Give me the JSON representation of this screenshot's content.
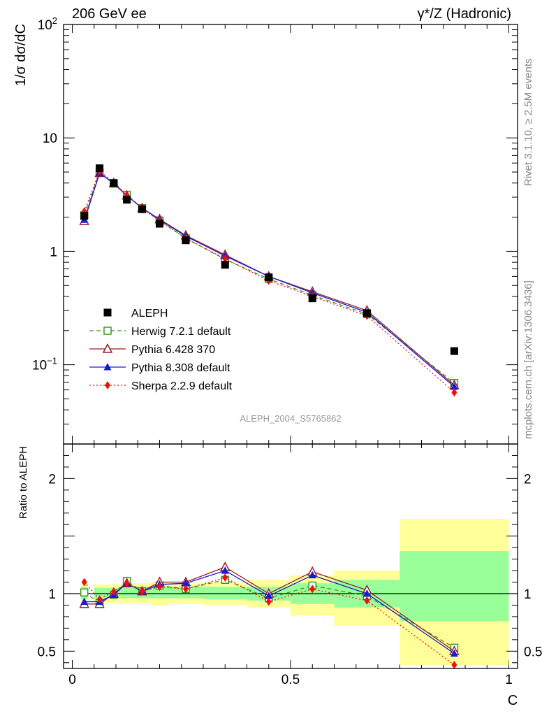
{
  "header": {
    "left": "206 GeV ee",
    "right": "γ*/Z (Hadronic)"
  },
  "side_labels": {
    "rivet": "Rivet 3.1.10, ≥ 2.5M events",
    "mcplots": "mcplots.cern.ch [arXiv:1306.3436]"
  },
  "watermark": "ALEPH_2004_S5765862",
  "chart_data": [
    {
      "type": "scatter",
      "panel": "main",
      "ylabel": "1/σ  dσ/dC",
      "yscale": "log",
      "ylim": [
        0.02,
        100
      ],
      "xlim": [
        -0.02,
        1.02
      ],
      "y_ticks": [
        {
          "v": 100,
          "label": "10",
          "sup": "2"
        },
        {
          "v": 10,
          "label": "10",
          "sup": ""
        },
        {
          "v": 1,
          "label": "1",
          "sup": ""
        },
        {
          "v": 0.1,
          "label": "10",
          "sup": "−1"
        }
      ],
      "x": [
        0.0275,
        0.0625,
        0.095,
        0.125,
        0.16,
        0.2,
        0.26,
        0.35,
        0.45,
        0.55,
        0.675,
        0.875
      ],
      "data": {
        "name": "ALEPH",
        "values": [
          2.05,
          5.4,
          4.0,
          2.85,
          2.35,
          1.75,
          1.25,
          0.76,
          0.59,
          0.385,
          0.285,
          0.132
        ],
        "x_low": [
          0.02,
          0.05,
          0.075,
          0.11,
          0.14,
          0.18,
          0.22,
          0.3,
          0.4,
          0.5,
          0.6,
          0.75
        ],
        "x_high": [
          0.035,
          0.075,
          0.11,
          0.14,
          0.18,
          0.22,
          0.3,
          0.4,
          0.5,
          0.6,
          0.75,
          1.0
        ]
      },
      "series": [
        {
          "name": "Herwig 7.2.1 default",
          "color": "#3a9a1a",
          "dash": "6,4",
          "marker": "open-square",
          "values": [
            2.08,
            4.95,
            3.95,
            3.15,
            2.4,
            1.87,
            1.3,
            0.85,
            0.57,
            0.41,
            0.28,
            0.069
          ]
        },
        {
          "name": "Pythia 6.428 370",
          "color": "#9c1c28",
          "dash": "",
          "marker": "open-triangle",
          "values": [
            1.85,
            4.9,
            4.0,
            3.1,
            2.4,
            1.92,
            1.38,
            0.93,
            0.6,
            0.44,
            0.3,
            0.066
          ]
        },
        {
          "name": "Pythia 8.308 default",
          "color": "#1a1ad6",
          "dash": "",
          "marker": "filled-triangle",
          "values": [
            1.9,
            4.9,
            3.95,
            3.1,
            2.4,
            1.9,
            1.36,
            0.91,
            0.6,
            0.43,
            0.29,
            0.064
          ]
        },
        {
          "name": "Sherpa 2.2.9 default",
          "color": "#ee1111",
          "dash": "2,3",
          "marker": "filled-diamond",
          "values": [
            2.25,
            5.1,
            4.05,
            3.1,
            2.4,
            1.85,
            1.3,
            0.86,
            0.55,
            0.4,
            0.27,
            0.057
          ]
        }
      ]
    },
    {
      "type": "scatter",
      "panel": "ratio",
      "ylabel": "Ratio to ALEPH",
      "xlabel": "C",
      "ylim": [
        0.35,
        2.3
      ],
      "xlim": [
        -0.02,
        1.02
      ],
      "y_ticks": [
        {
          "v": 2,
          "label": "2"
        },
        {
          "v": 1,
          "label": "1"
        },
        {
          "v": 0.5,
          "label": "0.5"
        }
      ],
      "x_ticks": [
        {
          "v": 0,
          "label": "0"
        },
        {
          "v": 0.5,
          "label": "0.5"
        },
        {
          "v": 1,
          "label": "1"
        }
      ],
      "x": [
        0.0275,
        0.0625,
        0.095,
        0.125,
        0.16,
        0.2,
        0.26,
        0.35,
        0.45,
        0.55,
        0.675,
        0.875
      ],
      "bands": {
        "stat": [
          [
            0.95,
            1.06
          ],
          [
            0.96,
            1.05
          ],
          [
            0.96,
            1.05
          ],
          [
            0.96,
            1.06
          ],
          [
            0.96,
            1.06
          ],
          [
            0.96,
            1.06
          ],
          [
            0.96,
            1.06
          ],
          [
            0.95,
            1.06
          ],
          [
            0.94,
            1.06
          ],
          [
            0.91,
            1.09
          ],
          [
            0.88,
            1.12
          ],
          [
            0.76,
            1.37
          ]
        ],
        "total": [
          [
            0.9,
            1.1
          ],
          [
            0.92,
            1.08
          ],
          [
            0.92,
            1.08
          ],
          [
            0.91,
            1.09
          ],
          [
            0.91,
            1.09
          ],
          [
            0.9,
            1.1
          ],
          [
            0.91,
            1.09
          ],
          [
            0.9,
            1.1
          ],
          [
            0.88,
            1.12
          ],
          [
            0.81,
            1.16
          ],
          [
            0.72,
            1.2
          ],
          [
            0.38,
            1.65
          ]
        ]
      },
      "series": [
        {
          "name": "Herwig 7.2.1 default",
          "values": [
            1.01,
            0.92,
            0.99,
            1.11,
            1.02,
            1.07,
            1.04,
            1.12,
            0.96,
            1.07,
            0.98,
            0.53
          ]
        },
        {
          "name": "Pythia 6.428 370",
          "values": [
            0.91,
            0.91,
            1.0,
            1.09,
            1.02,
            1.1,
            1.1,
            1.23,
            1.0,
            1.19,
            1.03,
            0.5
          ]
        },
        {
          "name": "Pythia 8.308 default",
          "values": [
            0.93,
            0.93,
            0.99,
            1.09,
            1.02,
            1.08,
            1.09,
            1.2,
            0.98,
            1.16,
            1.0,
            0.48
          ]
        },
        {
          "name": "Sherpa 2.2.9 default",
          "values": [
            1.1,
            0.95,
            1.02,
            1.09,
            1.02,
            1.06,
            1.04,
            1.14,
            0.93,
            1.04,
            0.94,
            0.38
          ]
        }
      ]
    }
  ]
}
